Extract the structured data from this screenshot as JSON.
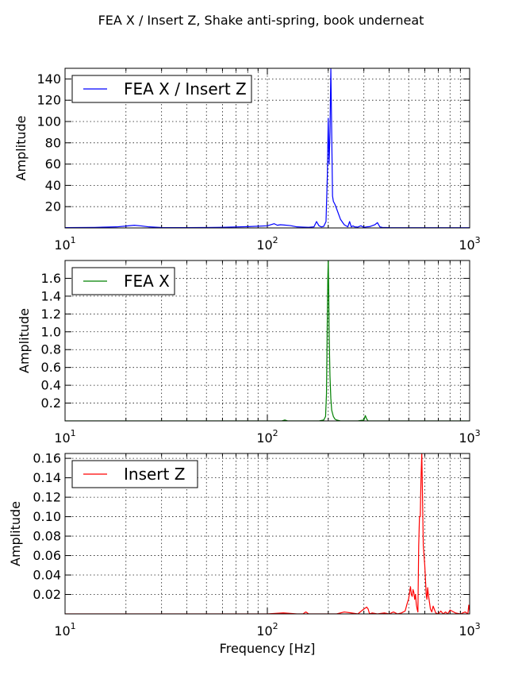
{
  "figure": {
    "title": "FEA X / Insert Z, Shake anti-spring, book underneat",
    "xlabel": "Frequency [Hz]"
  },
  "chart_data": [
    {
      "type": "line",
      "xscale": "log",
      "xlim": [
        10,
        1000
      ],
      "ylim": [
        0,
        150
      ],
      "yticks": [
        20,
        40,
        60,
        80,
        100,
        120,
        140
      ],
      "ytick_labels": [
        "20",
        "40",
        "60",
        "80",
        "100",
        "120",
        "140"
      ],
      "xtick_labels": [
        {
          "base": "10",
          "exp": "1"
        },
        {
          "base": "10",
          "exp": "2"
        },
        {
          "base": "10",
          "exp": "3"
        }
      ],
      "xlabel": "",
      "ylabel": "Amplitude",
      "grid": true,
      "legend_position": "upper-left",
      "series": [
        {
          "name": "FEA X / Insert Z",
          "color": "#0000ff",
          "x": [
            10,
            14,
            18,
            20,
            22,
            24,
            26,
            30,
            40,
            50,
            60,
            80,
            100,
            108,
            112,
            116,
            120,
            130,
            140,
            150,
            160,
            170,
            175,
            180,
            185,
            190,
            195,
            198,
            200,
            202,
            204,
            206,
            208,
            210,
            212,
            216,
            220,
            230,
            240,
            250,
            255,
            260,
            265,
            270,
            280,
            290,
            300,
            310,
            320,
            340,
            350,
            360,
            370,
            400,
            500,
            700,
            1000
          ],
          "y": [
            0.3,
            0.5,
            1.0,
            1.8,
            2.5,
            1.8,
            1.0,
            0.4,
            0.3,
            0.4,
            0.6,
            1.2,
            2.0,
            4.0,
            2.5,
            3.0,
            2.8,
            2.2,
            1.0,
            0.8,
            0.6,
            1.0,
            6.0,
            2.0,
            1.0,
            1.5,
            6.0,
            50.0,
            103.0,
            60.0,
            90.0,
            150.0,
            90.0,
            30.0,
            25.0,
            22.0,
            18.0,
            8.0,
            3.0,
            1.0,
            6.0,
            1.0,
            2.0,
            1.0,
            0.8,
            2.0,
            0.6,
            1.0,
            1.2,
            3.0,
            5.0,
            1.0,
            0.5,
            0.3,
            0.2,
            0.2,
            0.2
          ]
        }
      ]
    },
    {
      "type": "line",
      "xscale": "log",
      "xlim": [
        10,
        1000
      ],
      "ylim": [
        0,
        1.8
      ],
      "yticks": [
        0.2,
        0.4,
        0.6,
        0.8,
        1.0,
        1.2,
        1.4,
        1.6
      ],
      "ytick_labels": [
        "0.2",
        "0.4",
        "0.6",
        "0.8",
        "1.0",
        "1.2",
        "1.4",
        "1.6"
      ],
      "xtick_labels": [
        {
          "base": "10",
          "exp": "1"
        },
        {
          "base": "10",
          "exp": "2"
        },
        {
          "base": "10",
          "exp": "3"
        }
      ],
      "xlabel": "",
      "ylabel": "Amplitude",
      "grid": true,
      "legend_position": "upper-left",
      "series": [
        {
          "name": "FEA X",
          "color": "#008000",
          "x": [
            10,
            50,
            100,
            118,
            122,
            126,
            150,
            180,
            190,
            194,
            196,
            198,
            199,
            200,
            201,
            202,
            204,
            206,
            208,
            212,
            216,
            220,
            230,
            250,
            280,
            300,
            305,
            310,
            315,
            330,
            400,
            600,
            1000
          ],
          "y": [
            0.0,
            0.0,
            0.0,
            0.0,
            0.01,
            0.0,
            0.0,
            0.0,
            0.01,
            0.05,
            0.3,
            1.2,
            1.6,
            1.8,
            1.5,
            1.0,
            0.5,
            0.25,
            0.12,
            0.05,
            0.02,
            0.01,
            0.0,
            0.0,
            0.0,
            0.01,
            0.06,
            0.02,
            0.0,
            0.0,
            0.0,
            0.0,
            0.0
          ]
        }
      ]
    },
    {
      "type": "line",
      "xscale": "log",
      "xlim": [
        10,
        1000
      ],
      "ylim": [
        0,
        0.165
      ],
      "yticks": [
        0.02,
        0.04,
        0.06,
        0.08,
        0.1,
        0.12,
        0.14,
        0.16
      ],
      "ytick_labels": [
        "0.02",
        "0.04",
        "0.06",
        "0.08",
        "0.10",
        "0.12",
        "0.14",
        "0.16"
      ],
      "xtick_labels": [
        {
          "base": "10",
          "exp": "1"
        },
        {
          "base": "10",
          "exp": "2"
        },
        {
          "base": "10",
          "exp": "3"
        }
      ],
      "xlabel": "Frequency [Hz]",
      "ylabel": "Amplitude",
      "grid": true,
      "legend_position": "upper-left",
      "series": [
        {
          "name": "Insert Z",
          "color": "#ff0000",
          "x": [
            10,
            100,
            120,
            140,
            150,
            155,
            160,
            180,
            220,
            240,
            260,
            280,
            300,
            310,
            315,
            320,
            330,
            350,
            380,
            400,
            420,
            440,
            460,
            480,
            490,
            500,
            505,
            510,
            515,
            520,
            525,
            530,
            535,
            540,
            545,
            550,
            555,
            560,
            565,
            570,
            575,
            580,
            585,
            590,
            595,
            600,
            605,
            610,
            615,
            620,
            625,
            630,
            635,
            640,
            650,
            660,
            680,
            700,
            720,
            740,
            760,
            780,
            800,
            850,
            900,
            950,
            980,
            990,
            1000
          ],
          "y": [
            0.0,
            0.0,
            0.001,
            0.0,
            0.0,
            0.002,
            0.0,
            0.0,
            0.0,
            0.002,
            0.001,
            0.0,
            0.005,
            0.007,
            0.005,
            0.0,
            0.001,
            0.0,
            0.001,
            0.0,
            0.002,
            0.0,
            0.001,
            0.003,
            0.01,
            0.016,
            0.022,
            0.028,
            0.02,
            0.018,
            0.025,
            0.022,
            0.015,
            0.02,
            0.01,
            0.005,
            0.002,
            0.07,
            0.1,
            0.1,
            0.14,
            0.165,
            0.12,
            0.07,
            0.06,
            0.05,
            0.035,
            0.02,
            0.015,
            0.027,
            0.02,
            0.015,
            0.01,
            0.005,
            0.002,
            0.008,
            0.001,
            0.0,
            0.003,
            0.0,
            0.002,
            0.0,
            0.004,
            0.001,
            0.0,
            0.002,
            0.0,
            0.009,
            0.003
          ]
        }
      ]
    }
  ]
}
